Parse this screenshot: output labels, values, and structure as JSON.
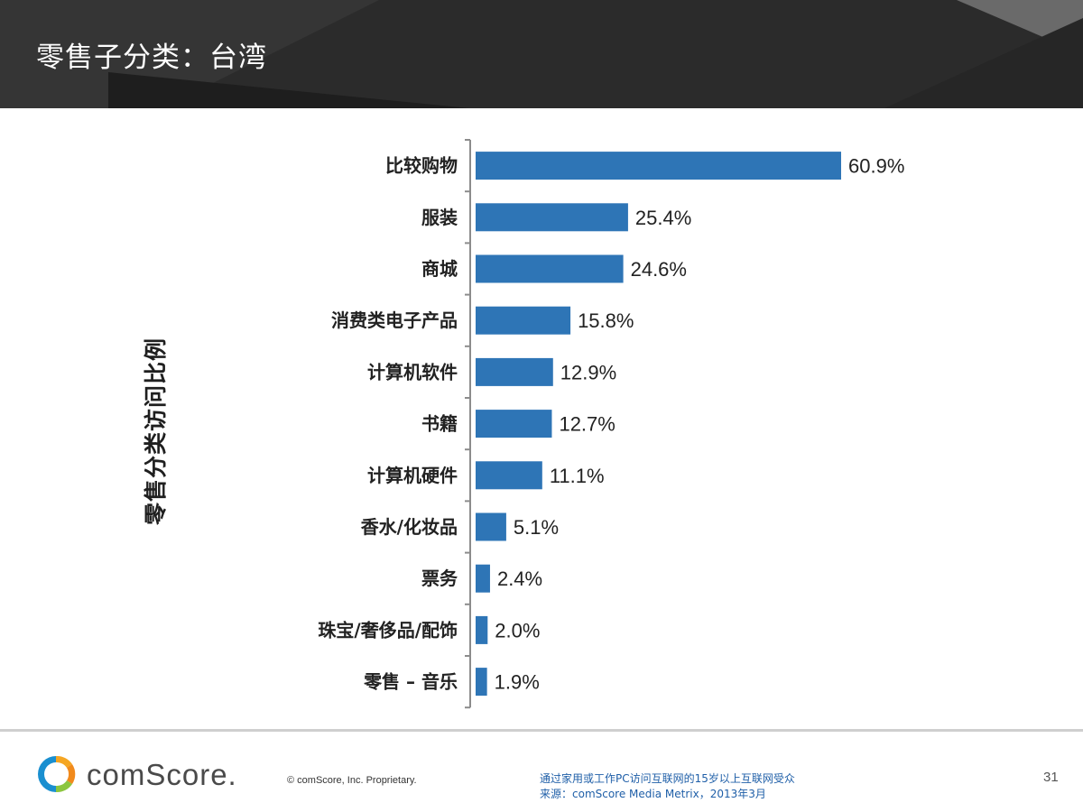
{
  "slide": {
    "title": "零售子分类：台湾",
    "page_number": "31"
  },
  "chart_data": {
    "type": "bar",
    "orientation": "horizontal",
    "ylabel": "零售分类访问比例",
    "categories": [
      "比较购物",
      "服装",
      "商城",
      "消费类电子产品",
      "计算机软件",
      "书籍",
      "计算机硬件",
      "香水/化妆品",
      "票务",
      "珠宝/奢侈品/配饰",
      "零售 – 音乐"
    ],
    "values": [
      60.9,
      25.4,
      24.6,
      15.8,
      12.9,
      12.7,
      11.1,
      5.1,
      2.4,
      2.0,
      1.9
    ],
    "value_labels": [
      "60.9%",
      "25.4%",
      "24.6%",
      "15.8%",
      "12.9%",
      "12.7%",
      "11.1%",
      "5.1%",
      "2.4%",
      "2.0%",
      "1.9%"
    ],
    "bar_color": "#2e75b6",
    "xlim": [
      0,
      100
    ],
    "grid": false
  },
  "footer": {
    "logo_text": "comScore.",
    "copyright": "© comScore, Inc.    Proprietary.",
    "note_line1": "通过家用或工作PC访问互联网的15岁以上互联网受众",
    "note_line2": "来源：comScore Media Metrix，2013年3月",
    "link_color": "#1f5fa8"
  }
}
